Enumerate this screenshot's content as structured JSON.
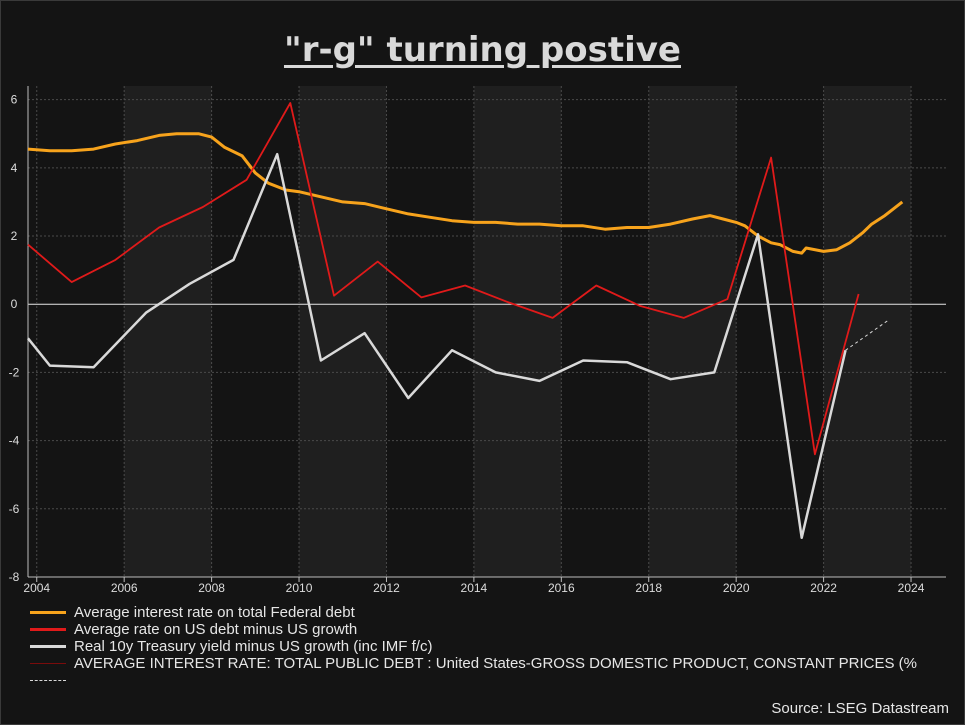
{
  "title": "\"r-g\" turning postive",
  "source": "Source: LSEG Datastream",
  "colors": {
    "background": "#141414",
    "plot_shade": "#1f1f1f",
    "orange": "#f7a31c",
    "red": "#e01a1a",
    "white": "#d9d9d9",
    "darkred": "#7a0c0c",
    "dashed": "#d9d9d9"
  },
  "chart_data": {
    "type": "line",
    "title": "\"r-g\" turning postive",
    "xlim": [
      2003.8,
      2024.8
    ],
    "ylim": [
      -8,
      6.4
    ],
    "x_ticks": [
      "2004",
      "2006",
      "2008",
      "2010",
      "2012",
      "2014",
      "2016",
      "2018",
      "2020",
      "2022",
      "2024"
    ],
    "y_ticks": [
      "6",
      "4",
      "2",
      "0",
      "-2",
      "-4",
      "-6",
      "-8"
    ],
    "grid": true,
    "legend_position": "bottom",
    "series": [
      {
        "name": "Average interest rate on total Federal debt",
        "color": "orange",
        "x": [
          2003.8,
          2004.3,
          2004.8,
          2005.3,
          2005.8,
          2006.3,
          2006.8,
          2007.2,
          2007.7,
          2008.0,
          2008.3,
          2008.7,
          2009.0,
          2009.3,
          2009.7,
          2010.0,
          2010.5,
          2011.0,
          2011.5,
          2012.0,
          2012.5,
          2013.0,
          2013.5,
          2014.0,
          2014.5,
          2015.0,
          2015.5,
          2016.0,
          2016.5,
          2017.0,
          2017.5,
          2018.0,
          2018.5,
          2019.0,
          2019.4,
          2019.7,
          2020.0,
          2020.2,
          2020.5,
          2020.8,
          2021.0,
          2021.3,
          2021.5,
          2021.6,
          2022.0,
          2022.3,
          2022.6,
          2022.9,
          2023.1,
          2023.4,
          2023.6,
          2023.8
        ],
        "values": [
          4.55,
          4.5,
          4.5,
          4.55,
          4.7,
          4.8,
          4.95,
          5.0,
          5.0,
          4.9,
          4.6,
          4.35,
          3.85,
          3.55,
          3.35,
          3.3,
          3.15,
          3.0,
          2.95,
          2.8,
          2.65,
          2.55,
          2.45,
          2.4,
          2.4,
          2.35,
          2.35,
          2.3,
          2.3,
          2.2,
          2.25,
          2.25,
          2.35,
          2.5,
          2.6,
          2.5,
          2.4,
          2.3,
          2.0,
          1.8,
          1.75,
          1.55,
          1.5,
          1.65,
          1.55,
          1.6,
          1.8,
          2.1,
          2.35,
          2.6,
          2.8,
          3.0
        ]
      },
      {
        "name": "Average rate on US debt minus US growth",
        "color": "red",
        "x": [
          2003.8,
          2004.8,
          2005.8,
          2006.8,
          2007.8,
          2008.8,
          2009.8,
          2010.8,
          2011.8,
          2012.8,
          2013.8,
          2014.8,
          2015.8,
          2016.8,
          2017.8,
          2018.8,
          2019.8,
          2020.8,
          2021.8,
          2022.8
        ],
        "values": [
          1.75,
          0.65,
          1.3,
          2.25,
          2.85,
          3.65,
          5.9,
          0.25,
          1.25,
          0.2,
          0.55,
          0.05,
          -0.4,
          0.55,
          -0.05,
          -0.4,
          0.15,
          4.3,
          -4.4,
          0.3
        ]
      },
      {
        "name": "Real 10y Treasury yield minus US growth (inc IMF f/c)",
        "color": "white",
        "x": [
          2003.8,
          2004.3,
          2005.3,
          2006.5,
          2007.5,
          2008.5,
          2009.5,
          2010.5,
          2011.5,
          2012.5,
          2013.5,
          2014.5,
          2015.5,
          2016.5,
          2017.5,
          2018.5,
          2019.5,
          2020.5,
          2021.5,
          2022.5
        ],
        "values": [
          -1.0,
          -1.8,
          -1.85,
          -0.25,
          0.6,
          1.3,
          4.4,
          -1.65,
          -0.85,
          -2.75,
          -1.35,
          -2.0,
          -2.25,
          -1.65,
          -1.7,
          -2.2,
          -2.0,
          2.05,
          -6.85,
          -1.35
        ]
      },
      {
        "name": "AVERAGE INTEREST RATE: TOTAL PUBLIC DEBT : United States-GROSS DOMESTIC PRODUCT, CONSTANT PRICES (%",
        "color": "darkred",
        "x": [],
        "values": []
      },
      {
        "name": "",
        "color": "dashed",
        "dashed": true,
        "x": [
          2022.5,
          2023.5
        ],
        "values": [
          -1.35,
          -0.45
        ]
      }
    ]
  }
}
